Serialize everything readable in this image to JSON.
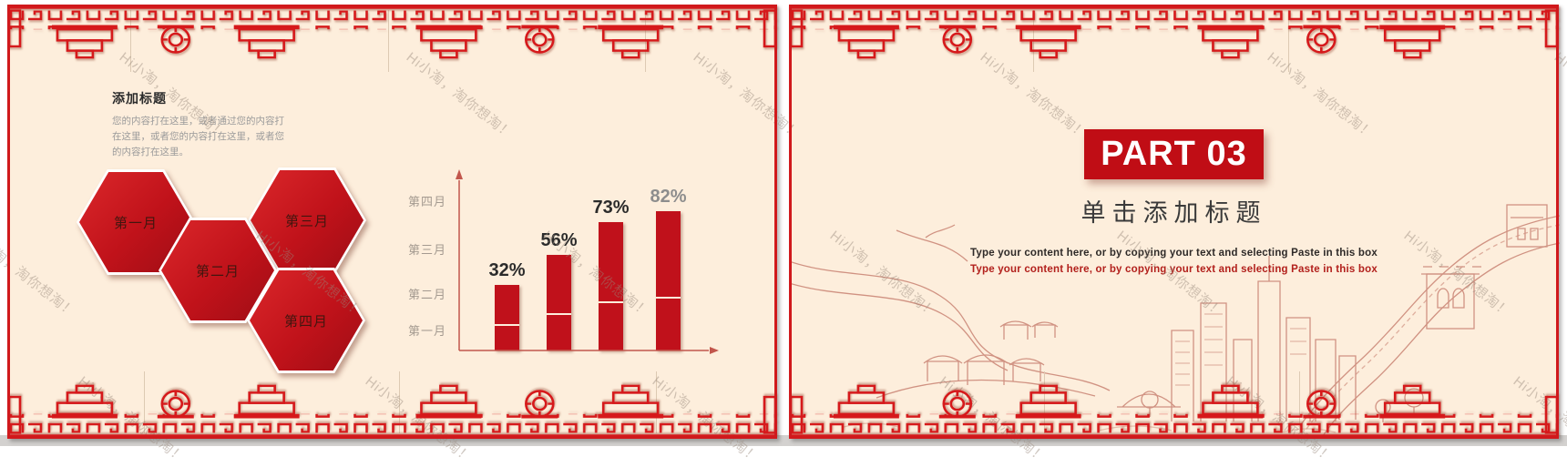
{
  "watermark": {
    "text": "Hi小淘，淘你想淘！"
  },
  "colors": {
    "accent_red": "#c5161d",
    "slide_background": "#fdeedc",
    "lattice_red": "#d6191b",
    "bar_red": "#c0111b",
    "sketch_line": "#c67c6c",
    "watermark_gray": "rgba(150,136,122,0.45)"
  },
  "chart_data": {
    "type": "bar",
    "categories": [
      "第一月",
      "第二月",
      "第三月",
      "第四月"
    ],
    "values": [
      32,
      56,
      73,
      82
    ],
    "value_labels": [
      "32%",
      "56%",
      "73%",
      "82%"
    ],
    "value_label_colors": [
      "#2b2b2b",
      "#2b2b2b",
      "#2b2b2b",
      "#8d8d8d"
    ],
    "y_axis_labels_top_to_bottom": [
      "第四月",
      "第三月",
      "第二月",
      "第一月"
    ],
    "title": "",
    "xlabel": "",
    "ylabel": "",
    "ylim": [
      0,
      100
    ],
    "grid": false,
    "legend": false,
    "bar_color": "#c0111b",
    "axis_color": "#c2564c"
  },
  "slide1": {
    "title": "添加标题",
    "body": "您的内容打在这里，或者通过您的内容打在这里，或者您的内容打在这里，或者您的内容打在这里。",
    "hexagons": [
      {
        "label": "第一月"
      },
      {
        "label": "第二月"
      },
      {
        "label": "第三月"
      },
      {
        "label": "第四月"
      }
    ]
  },
  "slide2": {
    "part_label": "PART 03",
    "title": "单击添加标题",
    "content_line1": "Type your content here, or by copying your text and selecting Paste in this box",
    "content_line2": "Type your content here, or by copying your text and selecting Paste in this box"
  }
}
